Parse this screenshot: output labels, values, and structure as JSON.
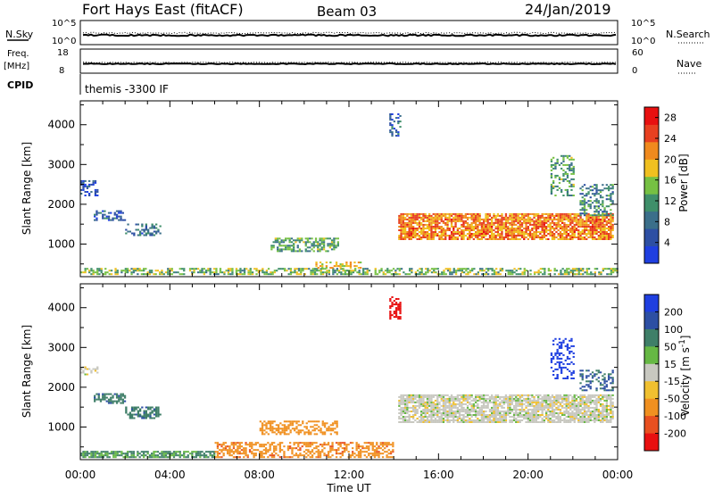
{
  "header": {
    "station": "Fort Hays East (fitACF)",
    "beam": "Beam 03",
    "date": "24/Jan/2019"
  },
  "panels": {
    "nsky": {
      "left_label": "N.Sky",
      "right_label": "N.Search",
      "left_ticks": [
        "10^5",
        "10^0"
      ],
      "right_ticks": [
        "10^5",
        "10^0"
      ]
    },
    "freq": {
      "left_label_1": "Freq.",
      "left_label_2": "[MHz]",
      "right_label": "Nave",
      "left_ticks": [
        "18",
        "8"
      ],
      "right_ticks": [
        "60",
        "0"
      ]
    },
    "cpid": {
      "label": "CPID",
      "text": "themis -3300 IF"
    }
  },
  "colors": {
    "power_scale": [
      "#1f3fe0",
      "#2d4fa3",
      "#3b6f8a",
      "#3f8f6a",
      "#76c043",
      "#f0c020",
      "#f08a1e",
      "#e84020",
      "#e81010"
    ],
    "velocity_scale": [
      "#1f3fe0",
      "#2d4fa3",
      "#3f7f68",
      "#66b844",
      "#c8c8c0",
      "#f0c030",
      "#f09020",
      "#e85020",
      "#e81010"
    ]
  },
  "chart_data": [
    {
      "type": "heatmap",
      "title": "Power",
      "xlabel": "",
      "ylabel": "Slant Range [km]",
      "x_ticks": [
        "00:00",
        "04:00",
        "08:00",
        "12:00",
        "16:00",
        "20:00",
        "00:00"
      ],
      "xlim_hours": [
        0,
        24
      ],
      "y_ticks": [
        1000,
        2000,
        3000,
        4000
      ],
      "ylim": [
        180,
        4600
      ],
      "colorbar": {
        "label": "Power [dB]",
        "ticks": [
          4,
          8,
          12,
          16,
          20,
          24,
          28
        ],
        "range": [
          0,
          30
        ]
      },
      "regions": [
        {
          "t": [
            0.0,
            24.0
          ],
          "r": [
            220,
            380
          ],
          "value": 14,
          "density": 0.55
        },
        {
          "t": [
            0.6,
            2.0
          ],
          "r": [
            1580,
            1830
          ],
          "value": 6,
          "density": 0.5
        },
        {
          "t": [
            2.0,
            3.6
          ],
          "r": [
            1200,
            1500
          ],
          "value": 8,
          "density": 0.45
        },
        {
          "t": [
            0.0,
            0.8
          ],
          "r": [
            2200,
            2600
          ],
          "value": 4,
          "density": 0.4
        },
        {
          "t": [
            8.5,
            11.5
          ],
          "r": [
            800,
            1150
          ],
          "value": 12,
          "density": 0.6
        },
        {
          "t": [
            10.5,
            12.5
          ],
          "r": [
            380,
            560
          ],
          "value": 18,
          "density": 0.45
        },
        {
          "t": [
            13.8,
            14.3
          ],
          "r": [
            3700,
            4250
          ],
          "value": 6,
          "density": 0.5
        },
        {
          "t": [
            14.2,
            23.8
          ],
          "r": [
            1100,
            1750
          ],
          "value": 22,
          "density": 0.8
        },
        {
          "t": [
            21.0,
            22.0
          ],
          "r": [
            2200,
            3200
          ],
          "value": 12,
          "density": 0.35
        },
        {
          "t": [
            22.3,
            23.8
          ],
          "r": [
            1700,
            2500
          ],
          "value": 10,
          "density": 0.45
        }
      ]
    },
    {
      "type": "heatmap",
      "title": "Velocity",
      "xlabel": "Time UT",
      "ylabel": "Slant Range [km]",
      "x_ticks": [
        "00:00",
        "04:00",
        "08:00",
        "12:00",
        "16:00",
        "20:00",
        "00:00"
      ],
      "xlim_hours": [
        0,
        24
      ],
      "y_ticks": [
        1000,
        2000,
        3000,
        4000
      ],
      "ylim": [
        180,
        4600
      ],
      "colorbar": {
        "label": "Velocity [m s^-1]",
        "ticks": [
          200,
          100,
          50,
          15,
          -15,
          -50,
          -100,
          -200
        ],
        "range": [
          -250,
          250
        ]
      },
      "regions": [
        {
          "t": [
            0.0,
            6.0
          ],
          "r": [
            220,
            380
          ],
          "value": 40,
          "density": 0.7
        },
        {
          "t": [
            6.0,
            14.0
          ],
          "r": [
            220,
            600
          ],
          "value": -60,
          "density": 0.55
        },
        {
          "t": [
            0.6,
            2.0
          ],
          "r": [
            1580,
            1830
          ],
          "value": 60,
          "density": 0.6
        },
        {
          "t": [
            2.0,
            3.6
          ],
          "r": [
            1200,
            1500
          ],
          "value": 60,
          "density": 0.55
        },
        {
          "t": [
            0.0,
            0.8
          ],
          "r": [
            2300,
            2500
          ],
          "value": 0,
          "density": 0.5
        },
        {
          "t": [
            8.0,
            11.5
          ],
          "r": [
            800,
            1150
          ],
          "value": -55,
          "density": 0.55
        },
        {
          "t": [
            13.8,
            14.3
          ],
          "r": [
            3700,
            4250
          ],
          "value": -200,
          "density": 0.5
        },
        {
          "t": [
            14.2,
            23.8
          ],
          "r": [
            1100,
            1800
          ],
          "value": 0,
          "density": 0.8
        },
        {
          "t": [
            21.0,
            22.0
          ],
          "r": [
            2200,
            3200
          ],
          "value": 220,
          "density": 0.35
        },
        {
          "t": [
            22.3,
            23.8
          ],
          "r": [
            1900,
            2400
          ],
          "value": 80,
          "density": 0.45
        }
      ]
    }
  ]
}
